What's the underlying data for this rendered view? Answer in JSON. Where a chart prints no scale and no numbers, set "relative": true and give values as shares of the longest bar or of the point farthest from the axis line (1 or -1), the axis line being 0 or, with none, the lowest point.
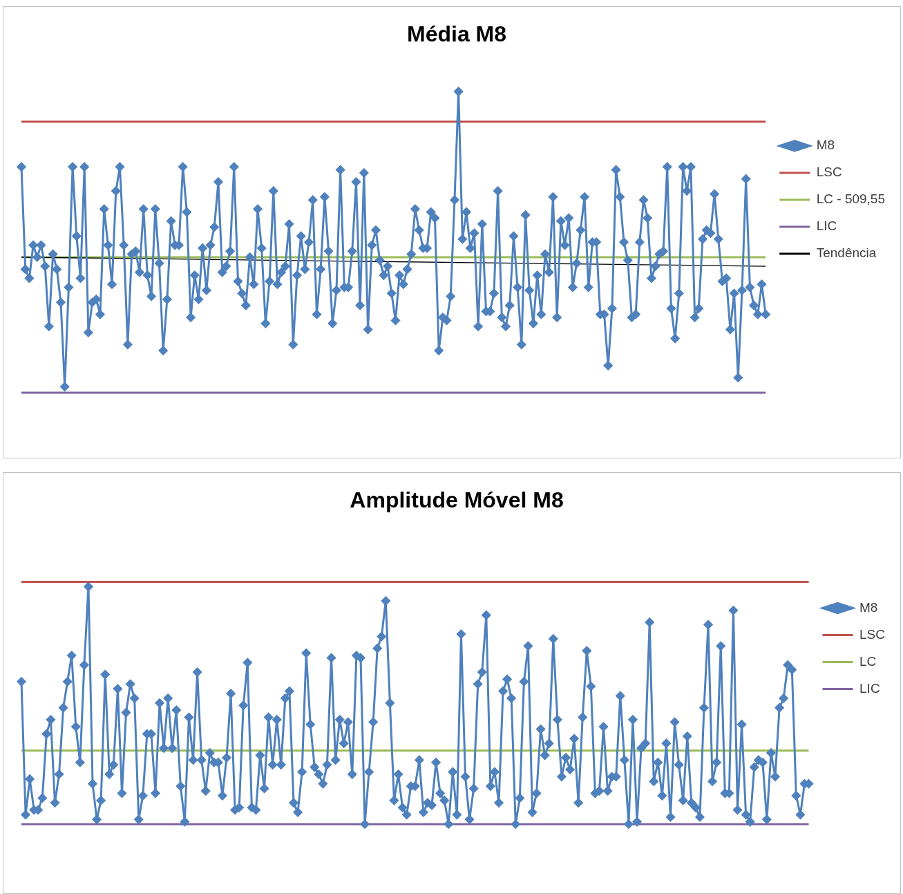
{
  "chart_data": [
    {
      "type": "line",
      "title": "Média M8",
      "relative": true,
      "legend": "right",
      "marker": "diamond",
      "categories": [
        null,
        null,
        null,
        null,
        null,
        null,
        null,
        null,
        null,
        null,
        null,
        null,
        null,
        null,
        null,
        null,
        null,
        null,
        null,
        null,
        null,
        null,
        null,
        null,
        null,
        null,
        null,
        null,
        null,
        null,
        null,
        null,
        null,
        null,
        null,
        null,
        null,
        null,
        null,
        null,
        null,
        null,
        null,
        null,
        null,
        null,
        null,
        null,
        null,
        null,
        null,
        null,
        null,
        null,
        null,
        null,
        null,
        null,
        null,
        null,
        null,
        null,
        null,
        null,
        null,
        null,
        null,
        null,
        null,
        null,
        null,
        null,
        null,
        null,
        null,
        null,
        null,
        null,
        null,
        null,
        null,
        null,
        null,
        null,
        null,
        null,
        null,
        null,
        null,
        null,
        null,
        null,
        null,
        null,
        null,
        null,
        null,
        null,
        null,
        null,
        null,
        null,
        null,
        null,
        null,
        null,
        null,
        null,
        null,
        null,
        null,
        null,
        null,
        null,
        null,
        null,
        null,
        null,
        null,
        null,
        null,
        null,
        null,
        null,
        null,
        null,
        null,
        null,
        null,
        null,
        null,
        null,
        null,
        null,
        null,
        null,
        null,
        null,
        null,
        null,
        null,
        null,
        null,
        null,
        null,
        null,
        null,
        null,
        null,
        null,
        null,
        null,
        null,
        null,
        null,
        null,
        null,
        null,
        null,
        null,
        null,
        null,
        null,
        null,
        null,
        null,
        null,
        null,
        null,
        null,
        null,
        null,
        null,
        null,
        null,
        null,
        null,
        null,
        null,
        null,
        null,
        null,
        null,
        null,
        null,
        null,
        null,
        null,
        null,
        null
      ],
      "series": [
        {
          "name": "M8",
          "color": "#4f81bd",
          "values": [
            0.75,
            0.41,
            0.38,
            0.49,
            0.45,
            0.49,
            0.42,
            0.22,
            0.46,
            0.41,
            0.3,
            0.02,
            0.35,
            0.75,
            0.52,
            0.38,
            0.75,
            0.2,
            0.3,
            0.31,
            0.26,
            0.61,
            0.49,
            0.36,
            0.67,
            0.75,
            0.49,
            0.16,
            0.46,
            0.47,
            0.4,
            0.61,
            0.39,
            0.32,
            0.61,
            0.43,
            0.14,
            0.31,
            0.57,
            0.49,
            0.49,
            0.75,
            0.6,
            0.25,
            0.39,
            0.31,
            0.48,
            0.34,
            0.49,
            0.55,
            0.7,
            0.4,
            0.42,
            0.47,
            0.75,
            0.37,
            0.33,
            0.29,
            0.45,
            0.36,
            0.61,
            0.48,
            0.23,
            0.37,
            0.67,
            0.36,
            0.4,
            0.42,
            0.56,
            0.16,
            0.39,
            0.52,
            0.41,
            0.5,
            0.64,
            0.26,
            0.41,
            0.65,
            0.47,
            0.23,
            0.34,
            0.74,
            0.35,
            0.35,
            0.47,
            0.7,
            0.29,
            0.73,
            0.21,
            0.49,
            0.54,
            0.44,
            0.39,
            0.42,
            0.33,
            0.24,
            0.39,
            0.36,
            0.41,
            0.46,
            0.61,
            0.54,
            0.48,
            0.48,
            0.6,
            0.58,
            0.14,
            0.25,
            0.24,
            0.32,
            0.64,
            1,
            0.51,
            0.6,
            0.48,
            0.53,
            0.22,
            0.56,
            0.27,
            0.27,
            0.33,
            0.67,
            0.25,
            0.22,
            0.29,
            0.52,
            0.35,
            0.16,
            0.59,
            0.34,
            0.23,
            0.39,
            0.26,
            0.46,
            0.4,
            0.65,
            0.25,
            0.57,
            0.49,
            0.58,
            0.35,
            0.43,
            0.54,
            0.65,
            0.35,
            0.5,
            0.5,
            0.26,
            0.26,
            0.09,
            0.28,
            0.74,
            0.65,
            0.5,
            0.44,
            0.25,
            0.26,
            0.5,
            0.64,
            0.58,
            0.38,
            0.42,
            0.46,
            0.47,
            0.75,
            0.28,
            0.18,
            0.33,
            0.75,
            0.67,
            0.75,
            0.25,
            0.28,
            0.51,
            0.54,
            0.53,
            0.66,
            0.51,
            0.37,
            0.38,
            0.21,
            0.33,
            0.05,
            0.34,
            0.71,
            0.35,
            0.29,
            0.26,
            0.36,
            0.26
          ]
        },
        {
          "name": "Tendência",
          "color": "#000000",
          "marker": "none",
          "values": [
            0.45,
            null,
            null,
            null,
            null,
            null,
            null,
            null,
            null,
            null,
            null,
            null,
            null,
            null,
            null,
            null,
            null,
            null,
            null,
            null,
            null,
            null,
            null,
            null,
            null,
            null,
            null,
            null,
            null,
            null,
            null,
            null,
            null,
            null,
            null,
            null,
            null,
            null,
            null,
            null,
            null,
            null,
            null,
            null,
            null,
            null,
            null,
            null,
            null,
            null,
            null,
            null,
            null,
            null,
            null,
            null,
            null,
            null,
            null,
            null,
            null,
            null,
            null,
            null,
            null,
            null,
            null,
            null,
            null,
            null,
            null,
            null,
            null,
            null,
            null,
            null,
            null,
            null,
            null,
            null,
            null,
            null,
            null,
            null,
            null,
            null,
            null,
            null,
            null,
            null,
            null,
            null,
            null,
            null,
            null,
            null,
            null,
            null,
            null,
            null,
            null,
            null,
            null,
            null,
            null,
            null,
            null,
            null,
            null,
            null,
            null,
            null,
            null,
            null,
            null,
            null,
            null,
            null,
            null,
            null,
            null,
            null,
            null,
            null,
            null,
            null,
            null,
            null,
            null,
            null,
            null,
            null,
            null,
            null,
            null,
            null,
            null,
            null,
            null,
            null,
            null,
            null,
            null,
            null,
            null,
            null,
            null,
            null,
            null,
            null,
            null,
            null,
            null,
            null,
            null,
            null,
            null,
            null,
            null,
            null,
            null,
            null,
            null,
            null,
            null,
            null,
            null,
            null,
            null,
            null,
            null,
            null,
            null,
            null,
            null,
            null,
            null,
            null,
            null,
            null,
            null,
            null,
            null,
            null,
            null,
            null,
            null,
            null,
            null,
            0.42
          ]
        }
      ],
      "ref_lines": [
        {
          "axis": "y",
          "value": 0.9,
          "label": "LSC",
          "color": "#c0504d"
        },
        {
          "axis": "y",
          "value": 0.45,
          "label": "LC - 509,55",
          "color": "#9bbb59"
        },
        {
          "axis": "y",
          "value": 0,
          "label": "LIC",
          "color": "#8064a2"
        }
      ]
    },
    {
      "type": "line",
      "title": "Amplitude Móvel M8",
      "relative": true,
      "legend": "right",
      "marker": "diamond",
      "categories": [
        null,
        null,
        null,
        null,
        null,
        null,
        null,
        null,
        null,
        null,
        null,
        null,
        null,
        null,
        null,
        null,
        null,
        null,
        null,
        null,
        null,
        null,
        null,
        null,
        null,
        null,
        null,
        null,
        null,
        null,
        null,
        null,
        null,
        null,
        null,
        null,
        null,
        null,
        null,
        null,
        null,
        null,
        null,
        null,
        null,
        null,
        null,
        null,
        null,
        null,
        null,
        null,
        null,
        null,
        null,
        null,
        null,
        null,
        null,
        null,
        null,
        null,
        null,
        null,
        null,
        null,
        null,
        null,
        null,
        null,
        null,
        null,
        null,
        null,
        null,
        null,
        null,
        null,
        null,
        null,
        null,
        null,
        null,
        null,
        null,
        null,
        null,
        null,
        null,
        null,
        null,
        null,
        null,
        null,
        null,
        null,
        null,
        null,
        null,
        null,
        null,
        null,
        null,
        null,
        null,
        null,
        null,
        null,
        null,
        null,
        null,
        null,
        null,
        null,
        null,
        null,
        null,
        null,
        null,
        null,
        null,
        null,
        null,
        null,
        null,
        null,
        null,
        null,
        null,
        null,
        null,
        null,
        null,
        null,
        null,
        null,
        null,
        null,
        null,
        null,
        null,
        null,
        null,
        null,
        null,
        null,
        null,
        null,
        null,
        null,
        null,
        null,
        null,
        null,
        null,
        null,
        null,
        null,
        null,
        null,
        null,
        null,
        null,
        null,
        null,
        null,
        null,
        null,
        null,
        null,
        null,
        null,
        null,
        null,
        null,
        null,
        null,
        null,
        null,
        null,
        null,
        null,
        null,
        null,
        null,
        null,
        null,
        null,
        null
      ],
      "series": [
        {
          "name": "M8",
          "color": "#4f81bd",
          "values": [
            0.6,
            0.04,
            0.19,
            0.06,
            0.06,
            0.11,
            0.38,
            0.44,
            0.09,
            0.21,
            0.49,
            0.6,
            0.71,
            0.41,
            0.26,
            0.67,
            1,
            0.17,
            0.02,
            0.1,
            0.63,
            0.21,
            0.25,
            0.57,
            0.13,
            0.47,
            0.59,
            0.53,
            0.02,
            0.12,
            0.38,
            0.38,
            0.13,
            0.51,
            0.32,
            0.53,
            0.32,
            0.48,
            0.16,
            0.01,
            0.45,
            0.27,
            0.64,
            0.27,
            0.14,
            0.3,
            0.26,
            0.26,
            0.12,
            0.28,
            0.55,
            0.06,
            0.07,
            0.5,
            0.68,
            0.07,
            0.06,
            0.29,
            0.15,
            0.45,
            0.25,
            0.44,
            0.25,
            0.53,
            0.56,
            0.09,
            0.05,
            0.22,
            0.72,
            0.42,
            0.24,
            0.21,
            0.17,
            0.25,
            0.7,
            0.27,
            0.44,
            0.34,
            0.43,
            0.21,
            0.71,
            0.7,
            0,
            0.22,
            0.43,
            0.74,
            0.79,
            0.94,
            0.51,
            0.1,
            0.21,
            0.07,
            0.04,
            0.16,
            0.16,
            0.27,
            0.05,
            0.09,
            0.08,
            0.26,
            0.13,
            0.1,
            0,
            0.22,
            0.04,
            0.8,
            0.2,
            0.02,
            0.15,
            0.59,
            0.64,
            0.88,
            0.16,
            0.22,
            0.09,
            0.56,
            0.61,
            0.53,
            0,
            0.11,
            0.6,
            0.75,
            0.05,
            0.13,
            0.4,
            0.29,
            0.34,
            0.78,
            0.44,
            0.2,
            0.28,
            0.23,
            0.36,
            0.09,
            0.45,
            0.73,
            0.58,
            0.13,
            0.14,
            0.41,
            0.14,
            0.2,
            0.2,
            0.54,
            0.27,
            0,
            0.44,
            0.01,
            0.32,
            0.34,
            0.85,
            0.18,
            0.26,
            0.12,
            0.34,
            0.03,
            0.43,
            0.25,
            0.1,
            0.37,
            0.09,
            0.07,
            0.03,
            0.49,
            0.84,
            0.18,
            0.26,
            0.75,
            0.13,
            0.13,
            0.9,
            0.06,
            0.42,
            0.04,
            0.01,
            0.24,
            0.27,
            0.26,
            0.02,
            0.3,
            0.2,
            0.49,
            0.53,
            0.67,
            0.65,
            0.12,
            0.04,
            0.17,
            0.17
          ]
        }
      ],
      "ref_lines": [
        {
          "axis": "y",
          "value": 1.02,
          "label": "LSC",
          "color": "#c0504d"
        },
        {
          "axis": "y",
          "value": 0.31,
          "label": "LC",
          "color": "#9bbb59"
        },
        {
          "axis": "y",
          "value": 0,
          "label": "LIC",
          "color": "#8064a2"
        }
      ]
    }
  ]
}
